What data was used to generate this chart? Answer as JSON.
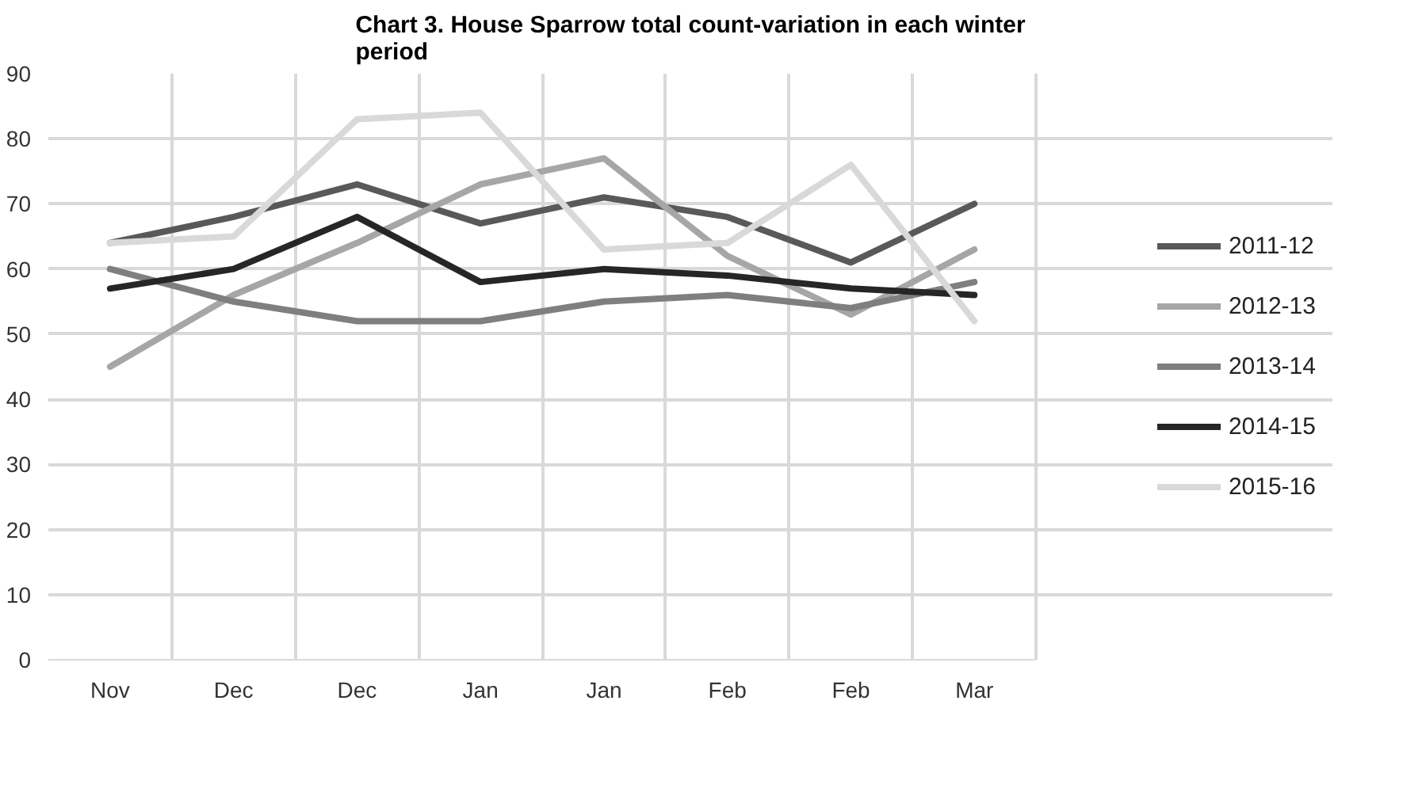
{
  "chart_data": {
    "type": "line",
    "title": "Chart 3. House Sparrow total count-variation in each winter period",
    "categories": [
      "Nov",
      "Dec",
      "Dec",
      "Jan",
      "Jan",
      "Feb",
      "Feb",
      "Mar"
    ],
    "series": [
      {
        "name": "2011-12",
        "color": "#595959",
        "values": [
          64,
          68,
          73,
          67,
          71,
          68,
          61,
          70
        ]
      },
      {
        "name": "2012-13",
        "color": "#a6a6a6",
        "values": [
          45,
          56,
          64,
          73,
          77,
          62,
          53,
          63
        ]
      },
      {
        "name": "2013-14",
        "color": "#7f7f7f",
        "values": [
          60,
          55,
          52,
          52,
          55,
          56,
          54,
          58
        ]
      },
      {
        "name": "2014-15",
        "color": "#262626",
        "values": [
          57,
          60,
          68,
          58,
          60,
          59,
          57,
          56
        ]
      },
      {
        "name": "2015-16",
        "color": "#d9d9d9",
        "values": [
          64,
          65,
          83,
          84,
          63,
          64,
          76,
          52
        ]
      }
    ],
    "ylim": [
      0,
      90
    ],
    "yticks": [
      0,
      10,
      20,
      30,
      40,
      50,
      60,
      70,
      80,
      90
    ],
    "grid": true,
    "legend": "right",
    "marker": "none",
    "line_style": "solid"
  }
}
